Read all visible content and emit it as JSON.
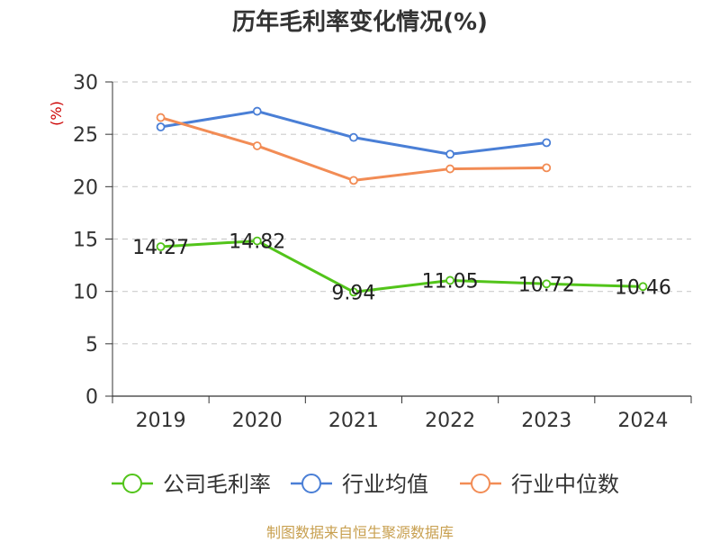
{
  "chart_data": {
    "type": "line",
    "title": "历年毛利率变化情况(%)",
    "xlabel": "",
    "ylabel": "(%)",
    "categories": [
      "2019",
      "2020",
      "2021",
      "2022",
      "2023",
      "2024"
    ],
    "ylim": [
      0,
      30
    ],
    "yticks": [
      0,
      5,
      10,
      15,
      20,
      25,
      30
    ],
    "grid": true,
    "legend_position": "bottom",
    "series": [
      {
        "name": "公司毛利率",
        "color": "#52c41a",
        "show_labels": true,
        "labels": [
          "14.27",
          "14.82",
          "9.94",
          "11.05",
          "10.72",
          "10.46"
        ],
        "values": [
          14.27,
          14.82,
          9.94,
          11.05,
          10.72,
          10.46
        ]
      },
      {
        "name": "行业均值",
        "color": "#4a7fd6",
        "show_labels": false,
        "values": [
          25.7,
          27.2,
          24.7,
          23.1,
          24.2,
          null
        ]
      },
      {
        "name": "行业中位数",
        "color": "#f28c55",
        "show_labels": false,
        "values": [
          26.6,
          23.9,
          20.6,
          21.7,
          21.8,
          null
        ]
      }
    ]
  },
  "footer": {
    "source": "制图数据来自恒生聚源数据库"
  }
}
